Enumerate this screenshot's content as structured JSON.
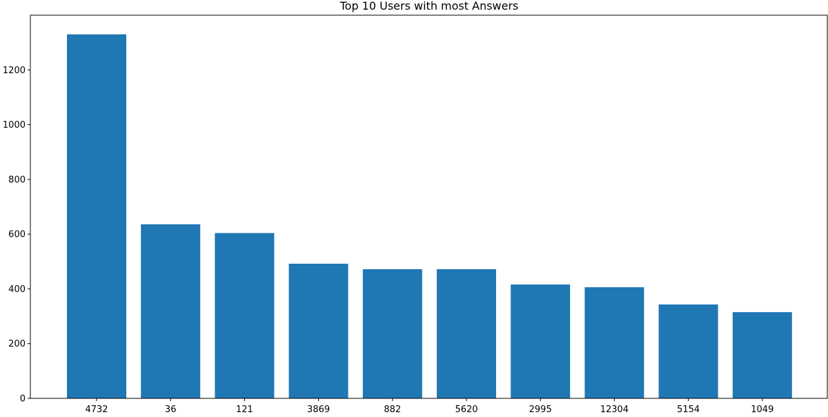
{
  "chart_data": {
    "type": "bar",
    "title": "Top 10 Users with most Answers",
    "xlabel": "",
    "ylabel": "",
    "categories": [
      "4732",
      "36",
      "121",
      "3869",
      "882",
      "5620",
      "2995",
      "12304",
      "5154",
      "1049"
    ],
    "values": [
      1330,
      636,
      604,
      492,
      472,
      472,
      416,
      406,
      343,
      315
    ],
    "ylim": [
      0,
      1400
    ],
    "yticks": [
      0,
      200,
      400,
      600,
      800,
      1000,
      1200
    ],
    "grid": false,
    "legend": "none",
    "bar_color": "#1f77b4"
  }
}
